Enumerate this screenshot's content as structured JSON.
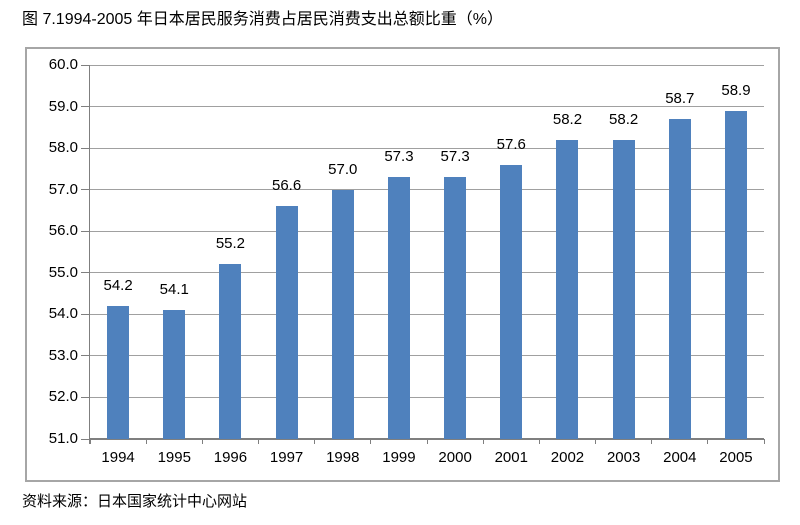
{
  "figure": {
    "title": "图 7.1994-2005 年日本居民服务消费占居民消费支出总额比重（%）",
    "source": "资料来源：日本国家统计中心网站"
  },
  "chart_data": {
    "type": "bar",
    "title": "图 7.1994-2005 年日本居民服务消费占居民消费支出总额比重（%）",
    "categories": [
      "1994",
      "1995",
      "1996",
      "1997",
      "1998",
      "1999",
      "2000",
      "2001",
      "2002",
      "2003",
      "2004",
      "2005"
    ],
    "values": [
      54.2,
      54.1,
      55.2,
      56.6,
      57.0,
      57.3,
      57.3,
      57.6,
      58.2,
      58.2,
      58.7,
      58.9
    ],
    "xlabel": "",
    "ylabel": "",
    "ylim": [
      51.0,
      60.0
    ],
    "ytick_step": 1.0,
    "ytick_decimals": 1,
    "value_label_decimals": 1,
    "grid": true,
    "legend": "none",
    "source_note": "资料来源：日本国家统计中心网站",
    "colors": {
      "bar": "#4F81BD",
      "gridline": "#A0A0A0",
      "axis": "#7F7F7F",
      "panel_border": "#A6A6A6",
      "text": "#000000",
      "background": "#FFFFFF"
    }
  }
}
